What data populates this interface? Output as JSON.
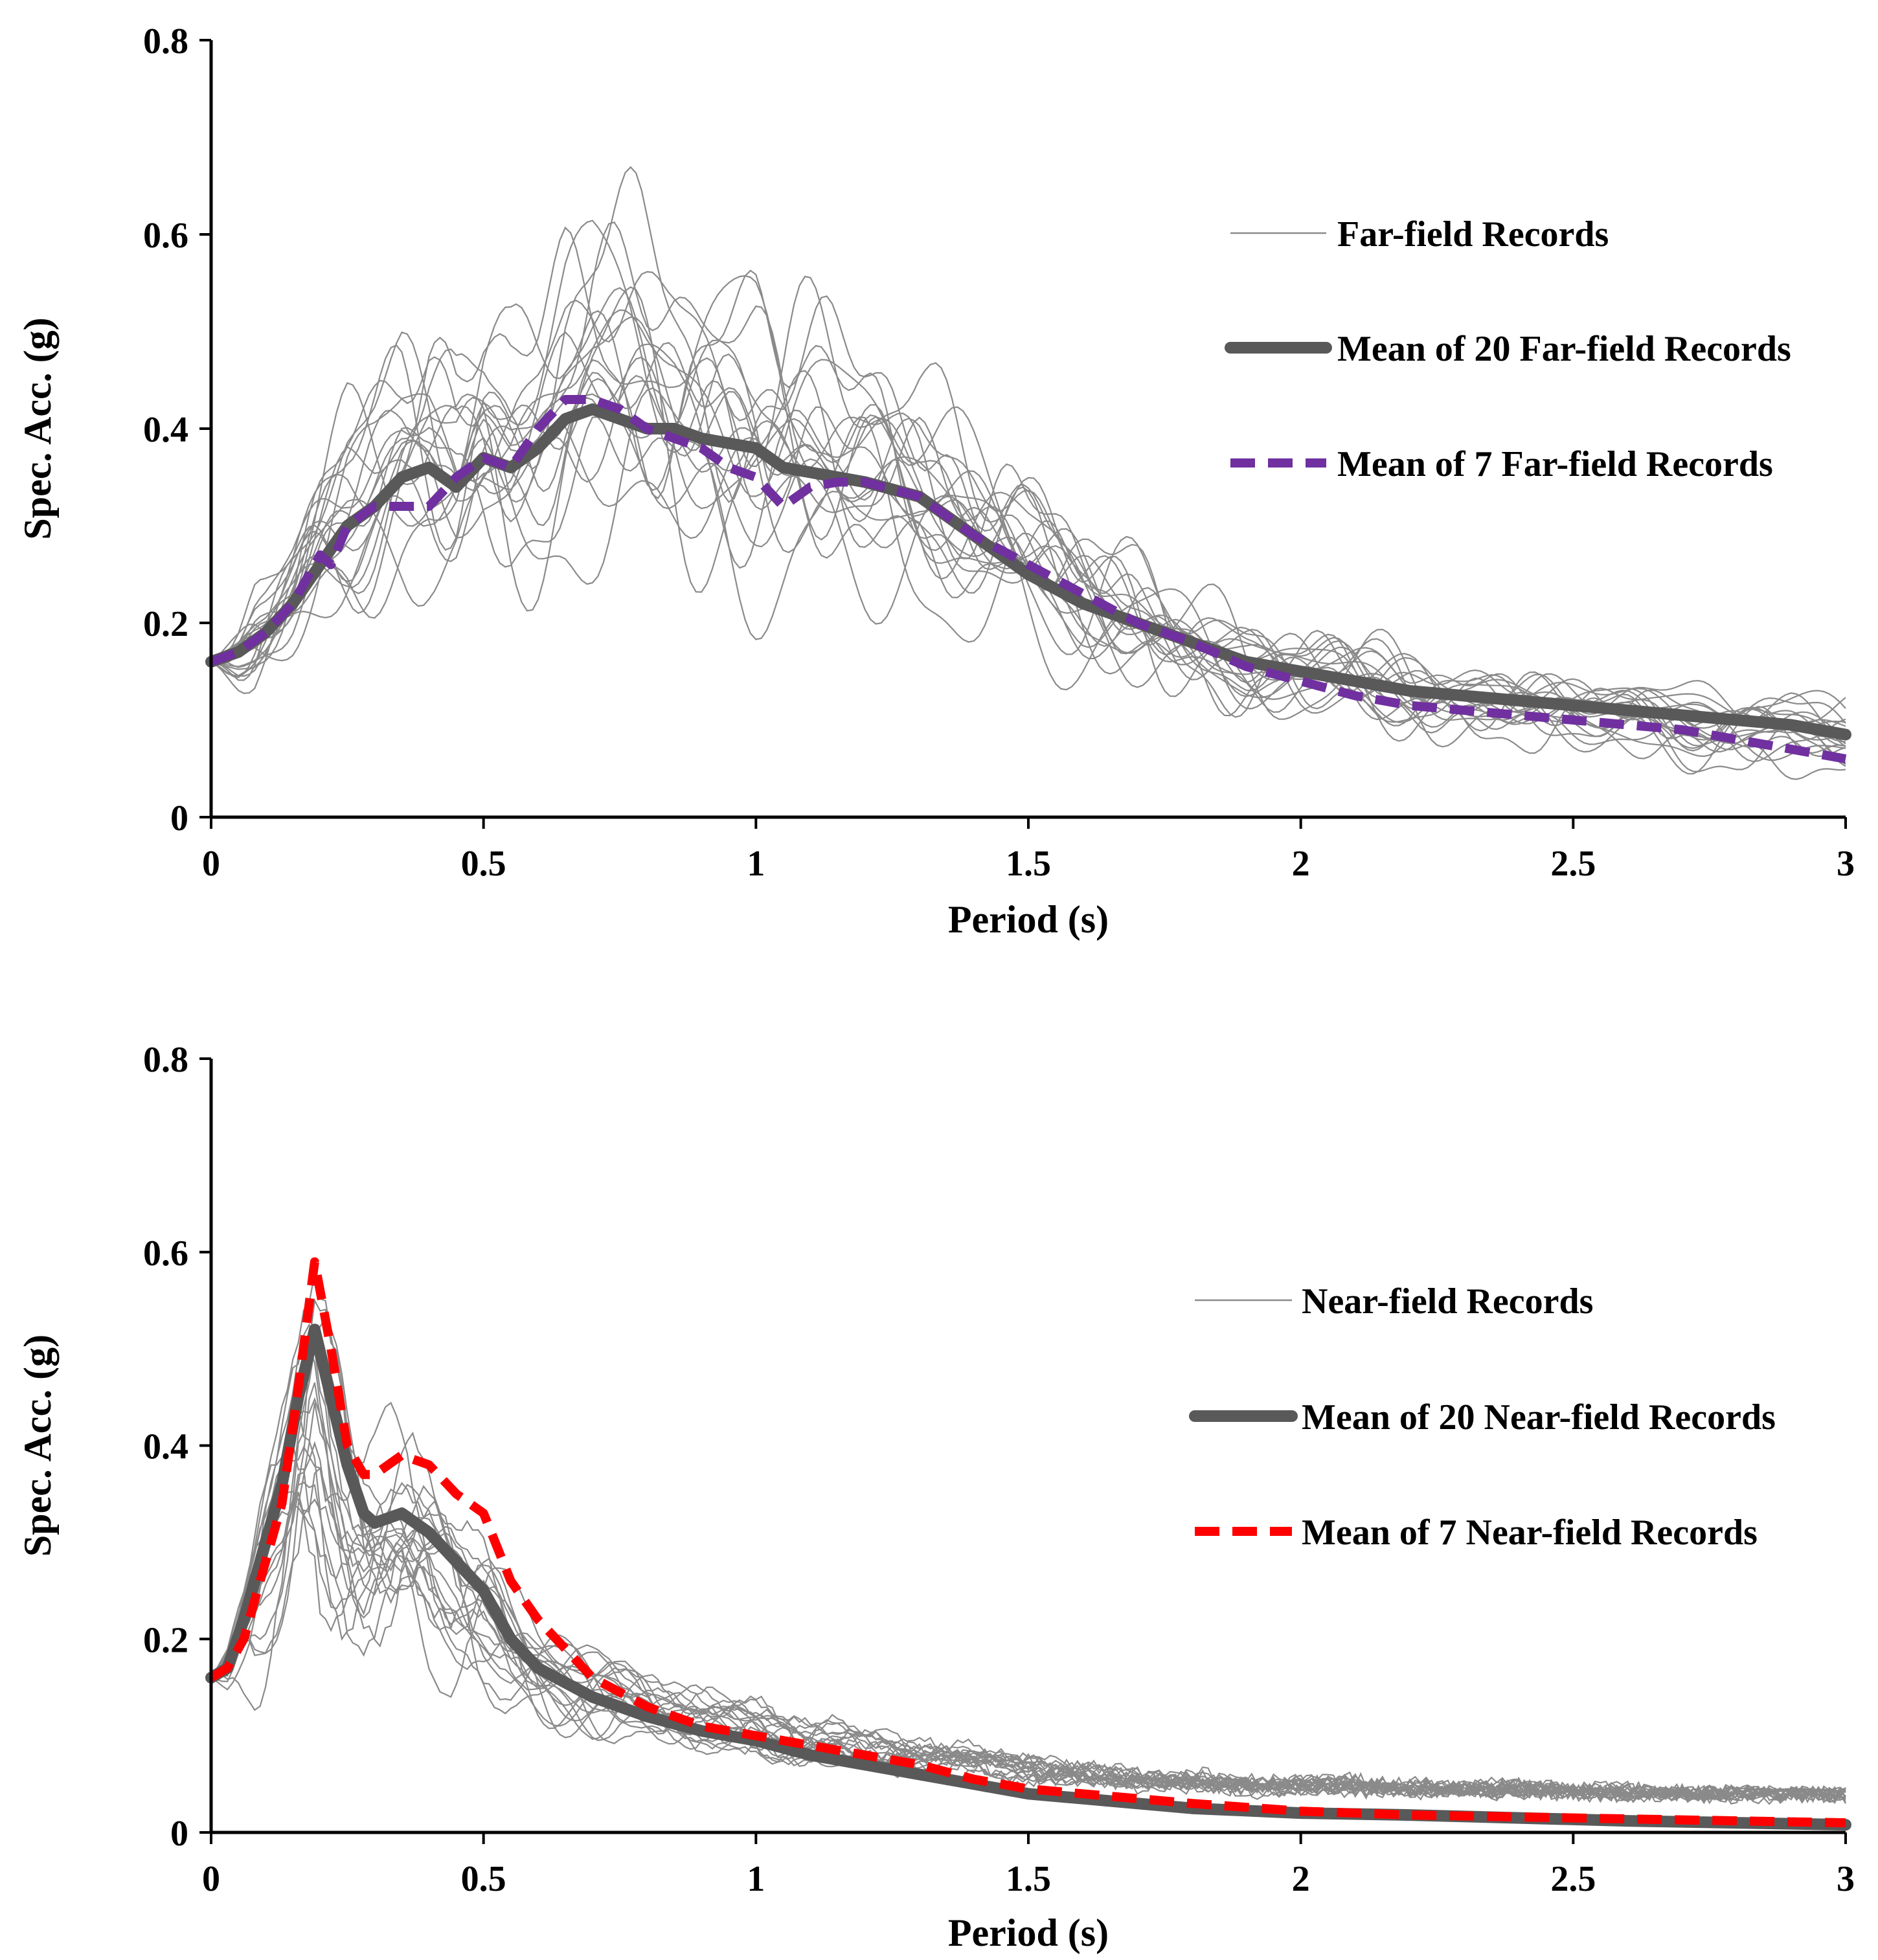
{
  "chart_data": [
    {
      "type": "line",
      "xlabel": "Period (s)",
      "ylabel": "Spec. Acc. (g)",
      "xlim": [
        0,
        3
      ],
      "ylim": [
        0,
        0.8
      ],
      "xticks": [
        "0",
        "0.5",
        "1",
        "1.5",
        "2",
        "2.5",
        "3"
      ],
      "yticks": [
        "0",
        "0.2",
        "0.4",
        "0.6",
        "0.8"
      ],
      "legend_position": "upper-right",
      "legend": [
        {
          "label": "Far-field Records",
          "style": "thin-gray",
          "color": "#8a8a8a"
        },
        {
          "label": "Mean of 20 Far-field Records",
          "style": "thick-solid",
          "color": "#595959"
        },
        {
          "label": "Mean of 7 Far-field Records",
          "style": "dashed",
          "color": "#7030a0"
        }
      ],
      "series": [
        {
          "name": "Mean of 20 Far-field Records",
          "color": "#595959",
          "x": [
            0,
            0.05,
            0.1,
            0.15,
            0.2,
            0.25,
            0.3,
            0.35,
            0.4,
            0.45,
            0.5,
            0.55,
            0.6,
            0.65,
            0.7,
            0.75,
            0.8,
            0.85,
            0.9,
            0.95,
            1.0,
            1.05,
            1.1,
            1.15,
            1.2,
            1.3,
            1.4,
            1.5,
            1.6,
            1.7,
            1.8,
            1.9,
            2.0,
            2.1,
            2.2,
            2.3,
            2.4,
            2.5,
            2.6,
            2.7,
            2.8,
            2.9,
            3.0
          ],
          "values": [
            0.16,
            0.17,
            0.19,
            0.22,
            0.26,
            0.3,
            0.32,
            0.35,
            0.36,
            0.34,
            0.37,
            0.36,
            0.38,
            0.41,
            0.42,
            0.41,
            0.4,
            0.4,
            0.39,
            0.385,
            0.38,
            0.36,
            0.355,
            0.35,
            0.345,
            0.33,
            0.29,
            0.25,
            0.22,
            0.2,
            0.18,
            0.16,
            0.15,
            0.14,
            0.13,
            0.125,
            0.12,
            0.115,
            0.11,
            0.105,
            0.1,
            0.095,
            0.085
          ]
        },
        {
          "name": "Mean of 7 Far-field Records",
          "color": "#7030a0",
          "x": [
            0,
            0.05,
            0.1,
            0.15,
            0.2,
            0.22,
            0.25,
            0.3,
            0.35,
            0.4,
            0.45,
            0.5,
            0.55,
            0.6,
            0.65,
            0.7,
            0.75,
            0.8,
            0.85,
            0.9,
            0.95,
            1.0,
            1.05,
            1.1,
            1.15,
            1.2,
            1.3,
            1.4,
            1.5,
            1.6,
            1.7,
            1.8,
            1.9,
            2.0,
            2.1,
            2.2,
            2.3,
            2.4,
            2.5,
            2.6,
            2.7,
            2.8,
            2.9,
            3.0
          ],
          "values": [
            0.16,
            0.17,
            0.19,
            0.22,
            0.27,
            0.26,
            0.3,
            0.32,
            0.32,
            0.32,
            0.35,
            0.37,
            0.36,
            0.4,
            0.43,
            0.43,
            0.42,
            0.4,
            0.39,
            0.38,
            0.36,
            0.35,
            0.32,
            0.34,
            0.345,
            0.345,
            0.33,
            0.29,
            0.26,
            0.23,
            0.2,
            0.18,
            0.155,
            0.14,
            0.125,
            0.115,
            0.11,
            0.105,
            0.1,
            0.095,
            0.09,
            0.08,
            0.07,
            0.06
          ]
        }
      ]
    },
    {
      "type": "line",
      "xlabel": "Period (s)",
      "ylabel": "Spec. Acc. (g)",
      "xlim": [
        0,
        3
      ],
      "ylim": [
        0,
        0.8
      ],
      "xticks": [
        "0",
        "0.5",
        "1",
        "1.5",
        "2",
        "2.5",
        "3"
      ],
      "yticks": [
        "0",
        "0.2",
        "0.4",
        "0.6",
        "0.8"
      ],
      "legend_position": "right",
      "legend": [
        {
          "label": "Near-field Records",
          "style": "thin-gray",
          "color": "#8a8a8a"
        },
        {
          "label": "Mean of 20 Near-field Records",
          "style": "thick-solid",
          "color": "#595959"
        },
        {
          "label": "Mean of 7 Near-field Records",
          "style": "dashed",
          "color": "#ff0000"
        }
      ],
      "series": [
        {
          "name": "Mean of 20 Near-field Records",
          "color": "#595959",
          "x": [
            0,
            0.03,
            0.06,
            0.1,
            0.13,
            0.16,
            0.19,
            0.22,
            0.25,
            0.28,
            0.3,
            0.35,
            0.4,
            0.45,
            0.5,
            0.55,
            0.6,
            0.7,
            0.8,
            0.9,
            1.0,
            1.1,
            1.2,
            1.3,
            1.4,
            1.5,
            1.6,
            1.8,
            2.0,
            2.2,
            2.4,
            2.6,
            2.8,
            3.0
          ],
          "values": [
            0.16,
            0.17,
            0.22,
            0.3,
            0.36,
            0.45,
            0.52,
            0.45,
            0.38,
            0.33,
            0.32,
            0.33,
            0.31,
            0.28,
            0.25,
            0.2,
            0.17,
            0.14,
            0.12,
            0.105,
            0.095,
            0.08,
            0.07,
            0.06,
            0.05,
            0.04,
            0.035,
            0.025,
            0.02,
            0.018,
            0.015,
            0.012,
            0.01,
            0.008
          ]
        },
        {
          "name": "Mean of 7 Near-field Records",
          "color": "#ff0000",
          "x": [
            0,
            0.03,
            0.06,
            0.1,
            0.13,
            0.16,
            0.19,
            0.22,
            0.25,
            0.28,
            0.3,
            0.35,
            0.4,
            0.45,
            0.5,
            0.55,
            0.6,
            0.7,
            0.8,
            0.9,
            1.0,
            1.1,
            1.2,
            1.3,
            1.4,
            1.5,
            1.6,
            1.8,
            2.0,
            2.2,
            2.4,
            2.6,
            2.8,
            3.0
          ],
          "values": [
            0.16,
            0.17,
            0.2,
            0.28,
            0.34,
            0.46,
            0.59,
            0.5,
            0.4,
            0.37,
            0.37,
            0.39,
            0.38,
            0.35,
            0.33,
            0.26,
            0.22,
            0.16,
            0.13,
            0.11,
            0.1,
            0.09,
            0.08,
            0.07,
            0.055,
            0.045,
            0.04,
            0.03,
            0.022,
            0.018,
            0.016,
            0.014,
            0.012,
            0.01
          ]
        }
      ]
    }
  ]
}
